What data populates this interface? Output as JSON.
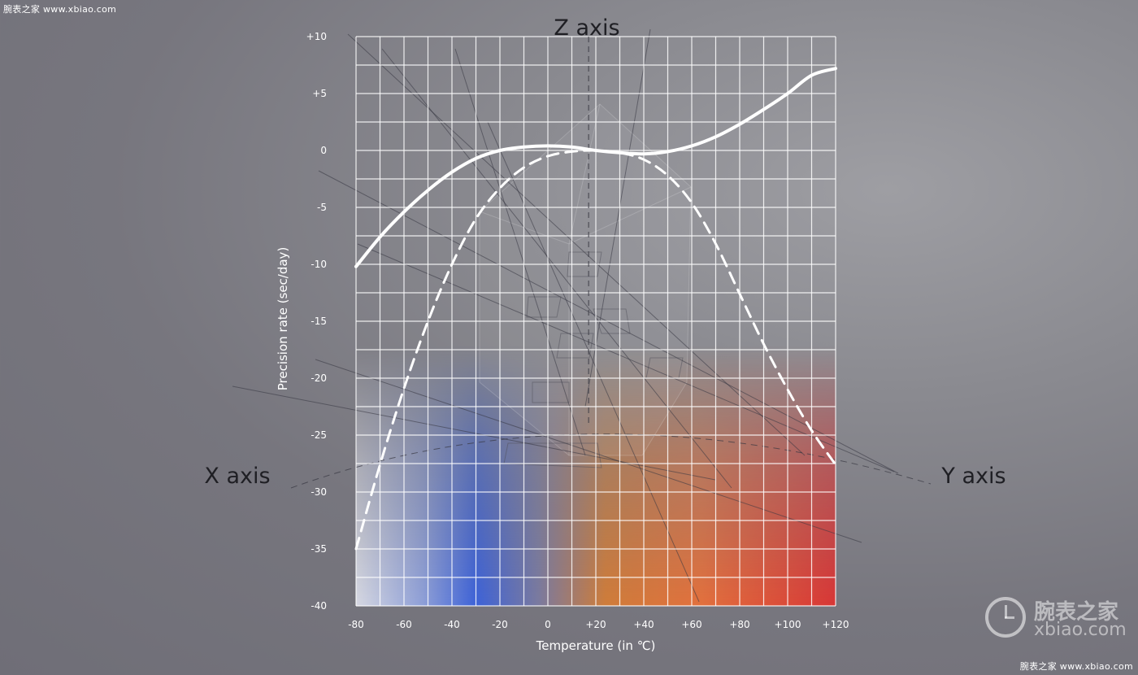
{
  "watermark": {
    "top_text": "腕表之家 www.xbiao.com",
    "bottom_text": "腕表之家 www.xbiao.com",
    "logo_cn": "腕表之家",
    "logo_en": "xbiao.com"
  },
  "axis_labels_3d": {
    "x": "X axis",
    "y": "Y axis",
    "z": "Z axis"
  },
  "chart_data": {
    "type": "line",
    "title": "",
    "xlabel": "Temperature (in ℃)",
    "ylabel": "Precision rate (sec/day)",
    "xlim": [
      -80,
      120
    ],
    "ylim": [
      -40,
      10
    ],
    "xticks": [
      -80,
      -60,
      -40,
      -20,
      0,
      20,
      40,
      60,
      80,
      100,
      120
    ],
    "xtick_labels": [
      "-80",
      "-60",
      "-40",
      "-20",
      "0",
      "+20",
      "+40",
      "+60",
      "+80",
      "+100",
      "+120"
    ],
    "yticks": [
      10,
      5,
      0,
      -5,
      -10,
      -15,
      -20,
      -25,
      -30,
      -35,
      -40
    ],
    "ytick_labels": [
      "+10",
      "+5",
      "0",
      "-5",
      "-10",
      "-15",
      "-20",
      "-25",
      "-30",
      "-35",
      "-40"
    ],
    "grid": true,
    "reference_line_x": 17,
    "series": [
      {
        "style": "solid",
        "color": "#ffffff",
        "x": [
          -80,
          -70,
          -60,
          -50,
          -40,
          -30,
          -20,
          -10,
          0,
          10,
          20,
          30,
          40,
          50,
          60,
          70,
          80,
          90,
          100,
          110,
          120
        ],
        "y": [
          -10.2,
          -7.6,
          -5.4,
          -3.5,
          -1.9,
          -0.7,
          0.0,
          0.3,
          0.4,
          0.3,
          0.0,
          -0.2,
          -0.3,
          -0.1,
          0.4,
          1.2,
          2.3,
          3.6,
          5.0,
          6.6,
          7.2
        ]
      },
      {
        "style": "dashed",
        "color": "#ffffff",
        "x": [
          -80,
          -70,
          -60,
          -50,
          -40,
          -30,
          -20,
          -10,
          0,
          10,
          20,
          30,
          40,
          50,
          60,
          70,
          80,
          90,
          100,
          110,
          120
        ],
        "y": [
          -35.0,
          -27.6,
          -20.9,
          -15.0,
          -10.0,
          -6.0,
          -3.3,
          -1.5,
          -0.5,
          -0.1,
          0.0,
          -0.2,
          -0.8,
          -2.2,
          -4.6,
          -8.2,
          -12.6,
          -17.0,
          -21.0,
          -24.6,
          -27.6
        ]
      }
    ],
    "background_gradient_colors": [
      "#c9ccd8",
      "#3f62d6",
      "#cf7a3a",
      "#e07a3a",
      "#d83a3a"
    ]
  }
}
